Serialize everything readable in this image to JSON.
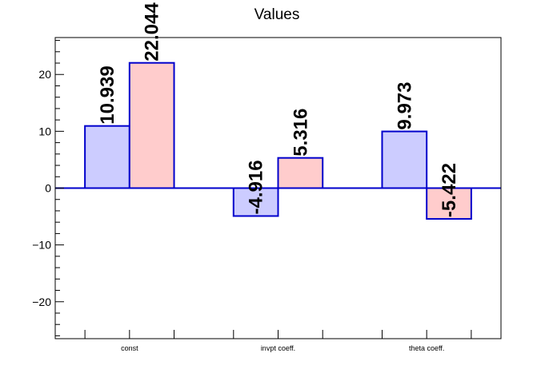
{
  "chart_data": {
    "type": "bar",
    "title": "Values",
    "categories": [
      "const",
      "invpt coeff.",
      "theta coeff."
    ],
    "series": [
      {
        "values": [
          10.939,
          -4.916,
          9.973
        ],
        "color": "#ccccff"
      },
      {
        "values": [
          22.044,
          5.316,
          -5.422
        ],
        "color": "#ffcccc"
      }
    ],
    "data_labels": [
      [
        "10.939",
        "-4.916",
        "9.973"
      ],
      [
        "22.044",
        "5.316",
        "-5.422"
      ]
    ],
    "ylim": [
      -26.5,
      26.5
    ],
    "yticks": [
      -20,
      -10,
      0,
      10,
      20
    ],
    "ytick_labels": [
      "−20",
      "−10",
      "0",
      "10",
      "20"
    ],
    "bar_edge_color": "#0000cc",
    "zero_line_color": "#0000cc",
    "grid": false,
    "legend": "none"
  }
}
